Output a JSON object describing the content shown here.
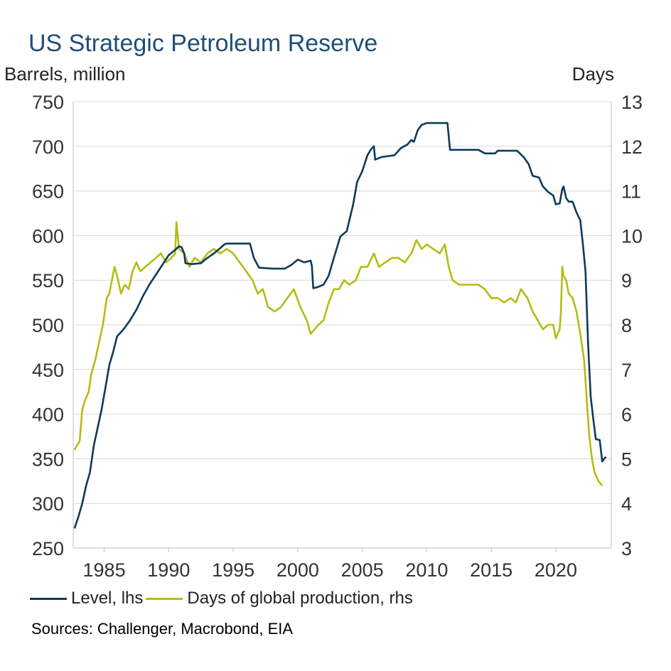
{
  "chart_data": {
    "type": "line",
    "title": "US Strategic Petroleum Reserve",
    "ylabel_left": "Barrels, million",
    "ylabel_right": "Days",
    "ylim_left": [
      250,
      750
    ],
    "yticks_left": [
      250,
      300,
      350,
      400,
      450,
      500,
      550,
      600,
      650,
      700,
      750
    ],
    "ylim_right": [
      3,
      13
    ],
    "yticks_right": [
      3,
      4,
      5,
      6,
      7,
      8,
      9,
      10,
      11,
      12,
      13
    ],
    "xlim": [
      1982.6,
      2024.3
    ],
    "xticks": [
      1985,
      1990,
      1995,
      2000,
      2005,
      2010,
      2015,
      2020
    ],
    "grid": true,
    "series": [
      {
        "name": "Level, lhs",
        "axis": "left",
        "color": "#0d3a5a",
        "points": [
          [
            1982.7,
            272
          ],
          [
            1983.0,
            285
          ],
          [
            1983.3,
            300
          ],
          [
            1983.6,
            320
          ],
          [
            1983.9,
            335
          ],
          [
            1984.2,
            365
          ],
          [
            1984.5,
            385
          ],
          [
            1984.8,
            405
          ],
          [
            1985.1,
            430
          ],
          [
            1985.4,
            455
          ],
          [
            1985.7,
            470
          ],
          [
            1986.0,
            487
          ],
          [
            1986.5,
            495
          ],
          [
            1987.0,
            505
          ],
          [
            1987.5,
            517
          ],
          [
            1988.0,
            532
          ],
          [
            1988.5,
            545
          ],
          [
            1989.0,
            556
          ],
          [
            1989.5,
            567
          ],
          [
            1990.0,
            578
          ],
          [
            1990.5,
            584
          ],
          [
            1990.8,
            588
          ],
          [
            1991.0,
            587
          ],
          [
            1991.2,
            580
          ],
          [
            1991.3,
            569
          ],
          [
            1991.8,
            568
          ],
          [
            1992.5,
            569
          ],
          [
            1993.0,
            575
          ],
          [
            1993.5,
            580
          ],
          [
            1994.0,
            586
          ],
          [
            1994.3,
            590
          ],
          [
            1994.5,
            591
          ],
          [
            1995.5,
            591
          ],
          [
            1996.3,
            591
          ],
          [
            1996.6,
            575
          ],
          [
            1997.0,
            564
          ],
          [
            1998.0,
            563
          ],
          [
            1999.0,
            563
          ],
          [
            1999.5,
            567
          ],
          [
            2000.0,
            573
          ],
          [
            2000.5,
            570
          ],
          [
            2001.0,
            572
          ],
          [
            2001.1,
            566
          ],
          [
            2001.2,
            541
          ],
          [
            2001.5,
            542
          ],
          [
            2002.0,
            545
          ],
          [
            2002.4,
            555
          ],
          [
            2002.8,
            575
          ],
          [
            2003.3,
            599
          ],
          [
            2003.8,
            605
          ],
          [
            2004.3,
            635
          ],
          [
            2004.6,
            660
          ],
          [
            2005.0,
            672
          ],
          [
            2005.4,
            690
          ],
          [
            2005.7,
            697
          ],
          [
            2005.9,
            700
          ],
          [
            2006.0,
            685
          ],
          [
            2006.5,
            688
          ],
          [
            2007.0,
            689
          ],
          [
            2007.5,
            690
          ],
          [
            2008.0,
            698
          ],
          [
            2008.5,
            702
          ],
          [
            2008.8,
            707
          ],
          [
            2009.0,
            705
          ],
          [
            2009.3,
            718
          ],
          [
            2009.6,
            724
          ],
          [
            2010.0,
            726
          ],
          [
            2011.0,
            726
          ],
          [
            2011.6,
            726
          ],
          [
            2011.8,
            696
          ],
          [
            2013.0,
            696
          ],
          [
            2014.0,
            696
          ],
          [
            2014.5,
            692
          ],
          [
            2015.3,
            692
          ],
          [
            2015.5,
            695
          ],
          [
            2017.0,
            695
          ],
          [
            2017.5,
            688
          ],
          [
            2017.9,
            680
          ],
          [
            2018.2,
            667
          ],
          [
            2018.7,
            665
          ],
          [
            2019.0,
            655
          ],
          [
            2019.4,
            649
          ],
          [
            2019.8,
            645
          ],
          [
            2020.0,
            635
          ],
          [
            2020.3,
            636
          ],
          [
            2020.5,
            652
          ],
          [
            2020.6,
            655
          ],
          [
            2020.8,
            642
          ],
          [
            2021.0,
            638
          ],
          [
            2021.3,
            638
          ],
          [
            2021.6,
            626
          ],
          [
            2021.9,
            617
          ],
          [
            2022.1,
            590
          ],
          [
            2022.3,
            560
          ],
          [
            2022.5,
            480
          ],
          [
            2022.7,
            420
          ],
          [
            2022.9,
            395
          ],
          [
            2023.1,
            372
          ],
          [
            2023.4,
            371
          ],
          [
            2023.6,
            347
          ],
          [
            2023.8,
            351
          ],
          [
            2023.9,
            352
          ]
        ]
      },
      {
        "name": "Days of global production, rhs",
        "axis": "right",
        "color": "#b5bc12",
        "points": [
          [
            1982.7,
            5.2
          ],
          [
            1982.9,
            5.3
          ],
          [
            1983.1,
            5.4
          ],
          [
            1983.3,
            6.1
          ],
          [
            1983.5,
            6.3
          ],
          [
            1983.8,
            6.5
          ],
          [
            1984.0,
            6.9
          ],
          [
            1984.3,
            7.2
          ],
          [
            1984.6,
            7.6
          ],
          [
            1984.9,
            8.0
          ],
          [
            1985.2,
            8.6
          ],
          [
            1985.4,
            8.7
          ],
          [
            1985.6,
            9.0
          ],
          [
            1985.8,
            9.3
          ],
          [
            1986.0,
            9.1
          ],
          [
            1986.3,
            8.7
          ],
          [
            1986.6,
            8.9
          ],
          [
            1986.9,
            8.8
          ],
          [
            1987.2,
            9.2
          ],
          [
            1987.5,
            9.4
          ],
          [
            1987.8,
            9.2
          ],
          [
            1988.2,
            9.3
          ],
          [
            1988.6,
            9.4
          ],
          [
            1989.0,
            9.5
          ],
          [
            1989.4,
            9.6
          ],
          [
            1989.8,
            9.4
          ],
          [
            1990.2,
            9.5
          ],
          [
            1990.5,
            9.6
          ],
          [
            1990.6,
            10.3
          ],
          [
            1990.8,
            9.7
          ],
          [
            1991.2,
            9.6
          ],
          [
            1991.6,
            9.3
          ],
          [
            1992.0,
            9.5
          ],
          [
            1992.5,
            9.4
          ],
          [
            1993.0,
            9.6
          ],
          [
            1993.5,
            9.7
          ],
          [
            1994.0,
            9.6
          ],
          [
            1994.5,
            9.7
          ],
          [
            1995.0,
            9.6
          ],
          [
            1995.5,
            9.4
          ],
          [
            1996.0,
            9.2
          ],
          [
            1996.5,
            9.0
          ],
          [
            1996.9,
            8.7
          ],
          [
            1997.3,
            8.8
          ],
          [
            1997.7,
            8.4
          ],
          [
            1998.2,
            8.3
          ],
          [
            1998.7,
            8.4
          ],
          [
            1999.2,
            8.6
          ],
          [
            1999.7,
            8.8
          ],
          [
            2000.2,
            8.4
          ],
          [
            2000.7,
            8.1
          ],
          [
            2001.0,
            7.8
          ],
          [
            2001.3,
            7.9
          ],
          [
            2001.6,
            8.0
          ],
          [
            2002.0,
            8.1
          ],
          [
            2002.4,
            8.5
          ],
          [
            2002.8,
            8.8
          ],
          [
            2003.2,
            8.8
          ],
          [
            2003.6,
            9.0
          ],
          [
            2004.0,
            8.9
          ],
          [
            2004.5,
            9.0
          ],
          [
            2004.9,
            9.3
          ],
          [
            2005.4,
            9.3
          ],
          [
            2005.9,
            9.6
          ],
          [
            2006.3,
            9.3
          ],
          [
            2006.8,
            9.4
          ],
          [
            2007.3,
            9.5
          ],
          [
            2007.8,
            9.5
          ],
          [
            2008.3,
            9.4
          ],
          [
            2008.8,
            9.6
          ],
          [
            2009.2,
            9.9
          ],
          [
            2009.6,
            9.7
          ],
          [
            2010.0,
            9.8
          ],
          [
            2010.5,
            9.7
          ],
          [
            2011.0,
            9.6
          ],
          [
            2011.4,
            9.8
          ],
          [
            2011.7,
            9.3
          ],
          [
            2012.0,
            9.0
          ],
          [
            2012.5,
            8.9
          ],
          [
            2013.0,
            8.9
          ],
          [
            2013.5,
            8.9
          ],
          [
            2014.0,
            8.9
          ],
          [
            2014.5,
            8.8
          ],
          [
            2015.0,
            8.6
          ],
          [
            2015.5,
            8.6
          ],
          [
            2016.0,
            8.5
          ],
          [
            2016.5,
            8.6
          ],
          [
            2016.9,
            8.5
          ],
          [
            2017.3,
            8.8
          ],
          [
            2017.8,
            8.6
          ],
          [
            2018.2,
            8.3
          ],
          [
            2018.6,
            8.1
          ],
          [
            2019.0,
            7.9
          ],
          [
            2019.4,
            8.0
          ],
          [
            2019.8,
            8.0
          ],
          [
            2020.0,
            7.7
          ],
          [
            2020.3,
            7.9
          ],
          [
            2020.4,
            8.3
          ],
          [
            2020.5,
            9.3
          ],
          [
            2020.6,
            9.1
          ],
          [
            2020.8,
            9.0
          ],
          [
            2021.0,
            8.7
          ],
          [
            2021.3,
            8.6
          ],
          [
            2021.6,
            8.3
          ],
          [
            2021.9,
            7.8
          ],
          [
            2022.2,
            7.2
          ],
          [
            2022.4,
            6.3
          ],
          [
            2022.6,
            5.5
          ],
          [
            2022.8,
            5.0
          ],
          [
            2023.0,
            4.7
          ],
          [
            2023.3,
            4.5
          ],
          [
            2023.6,
            4.4
          ]
        ]
      }
    ],
    "legend": [
      "Level, lhs",
      "Days of global production, rhs"
    ],
    "legend_position": "bottom-left"
  },
  "source": "Sources: Challenger, Macrobond, EIA"
}
